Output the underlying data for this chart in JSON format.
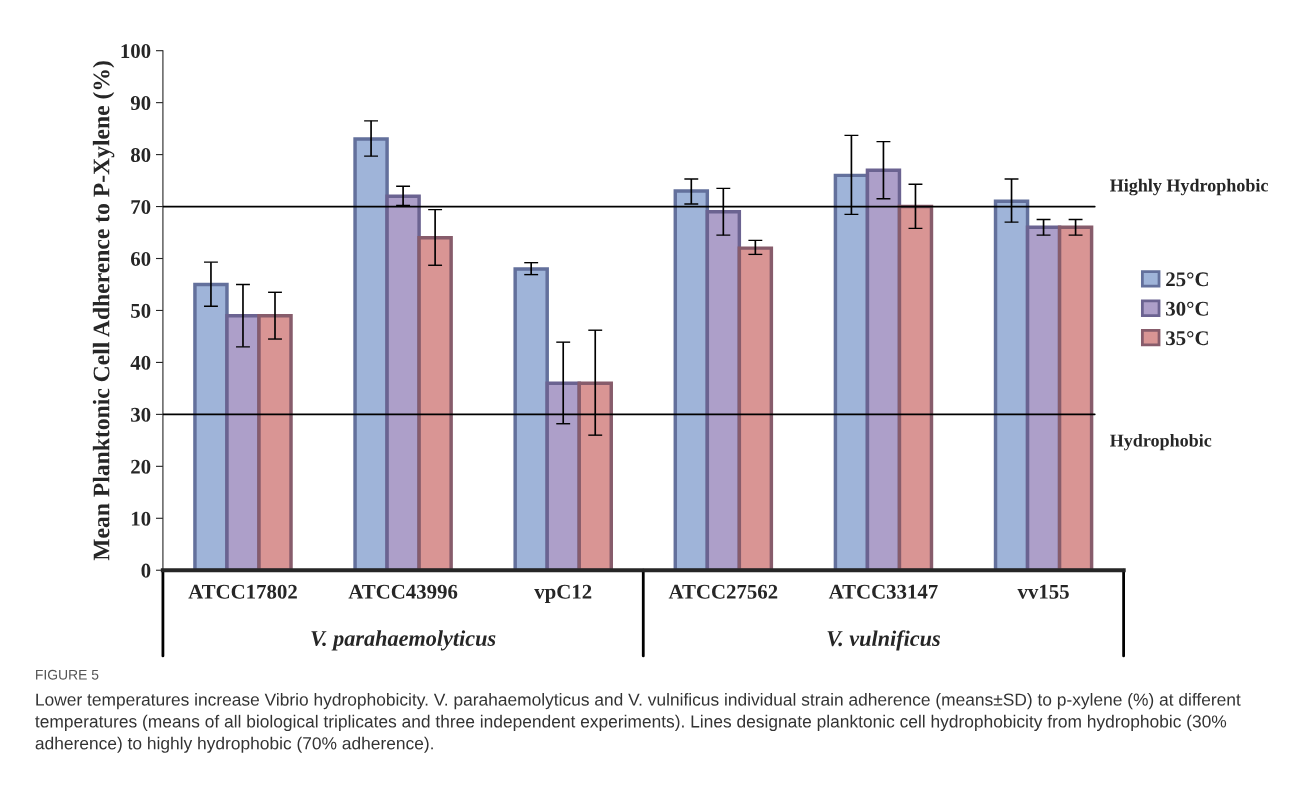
{
  "chart_data": {
    "type": "bar",
    "ylabel": "Mean Planktonic Cell Adherence to P-Xylene (%)",
    "categories": [
      "ATCC17802",
      "ATCC43996",
      "vpC12",
      "ATCC27562",
      "ATCC33147",
      "vv155"
    ],
    "series": [
      {
        "name": "25°C",
        "color": "#9fb4d9",
        "values": [
          55,
          83,
          58,
          73,
          76,
          71
        ],
        "errors": [
          [
            50.8,
            59.3
          ],
          [
            79.7,
            86.5
          ],
          [
            56.9,
            59.2
          ],
          [
            70.5,
            75.3
          ],
          [
            68.5,
            83.7
          ],
          [
            67,
            75.3
          ]
        ]
      },
      {
        "name": "30°C",
        "color": "#ad9fc9",
        "values": [
          49,
          72,
          36,
          69,
          77,
          66
        ],
        "errors": [
          [
            43,
            55
          ],
          [
            70.2,
            73.9
          ],
          [
            28.2,
            43.9
          ],
          [
            64.5,
            73.5
          ],
          [
            71.5,
            82.5
          ],
          [
            64.5,
            67.5
          ]
        ]
      },
      {
        "name": "35°C",
        "color": "#d99594",
        "values": [
          49,
          64,
          36,
          62,
          70,
          66
        ],
        "errors": [
          [
            44.5,
            53.5
          ],
          [
            58.7,
            69.4
          ],
          [
            26,
            46.2
          ],
          [
            60.8,
            63.5
          ],
          [
            65.8,
            74.3
          ],
          [
            64.5,
            67.5
          ]
        ]
      }
    ],
    "ylim": [
      0,
      100
    ],
    "yticks": [
      0,
      10,
      20,
      30,
      40,
      50,
      60,
      70,
      80,
      90,
      100
    ],
    "ref_lines": [
      {
        "axis": "y",
        "value": 70,
        "label": "Highly Hydrophobic",
        "color": "#000000"
      },
      {
        "axis": "y",
        "value": 30,
        "label": "Hydrophobic",
        "color": "#000000"
      }
    ],
    "grid": false,
    "legend": "right",
    "annotations": [
      "V. parahaemolyticus",
      "V. vulnificus",
      "FIGURE 5",
      "Lower temperatures increase Vibrio hydrophobicity. V. parahaemolyticus and V. vulnificus individual strain adherence (means±SD) to p-xylene (%) at different temperatures (means of all biological triplicates and three independent experiments). Lines designate planktonic cell hydrophobicity from hydrophobic (30% adherence) to highly hydrophobic (70% adherence)."
    ]
  }
}
